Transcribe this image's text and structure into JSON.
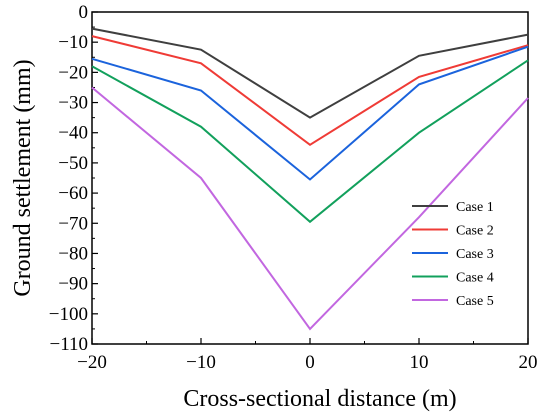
{
  "chart_data": {
    "type": "line",
    "title": "",
    "xlabel": "Cross-sectional distance (m)",
    "ylabel": "Ground settlement (mm)",
    "xlim": [
      -20,
      20
    ],
    "ylim": [
      -110,
      0
    ],
    "x_ticks": [
      -20,
      -10,
      0,
      10,
      20
    ],
    "y_ticks": [
      0,
      -10,
      -20,
      -30,
      -40,
      -50,
      -60,
      -70,
      -80,
      -90,
      -100,
      -110
    ],
    "grid": false,
    "legend": "right",
    "x": [
      -20,
      -10,
      0,
      10,
      20
    ],
    "series": [
      {
        "name": "Case 1",
        "color": "#3f3f3f",
        "values": [
          -5.5,
          -12.5,
          -35.0,
          -14.5,
          -7.5
        ]
      },
      {
        "name": "Case 2",
        "color": "#ef3b36",
        "values": [
          -8.0,
          -17.0,
          -44.0,
          -21.5,
          -11.0
        ]
      },
      {
        "name": "Case 3",
        "color": "#1b63dc",
        "values": [
          -15.5,
          -26.0,
          -55.5,
          -24.0,
          -11.5
        ]
      },
      {
        "name": "Case 4",
        "color": "#12a05c",
        "values": [
          -18.0,
          -38.0,
          -69.5,
          -40.0,
          -16.0
        ]
      },
      {
        "name": "Case 5",
        "color": "#c267e0",
        "values": [
          -25.0,
          -55.0,
          -105.0,
          -68.0,
          -28.5
        ]
      }
    ]
  }
}
